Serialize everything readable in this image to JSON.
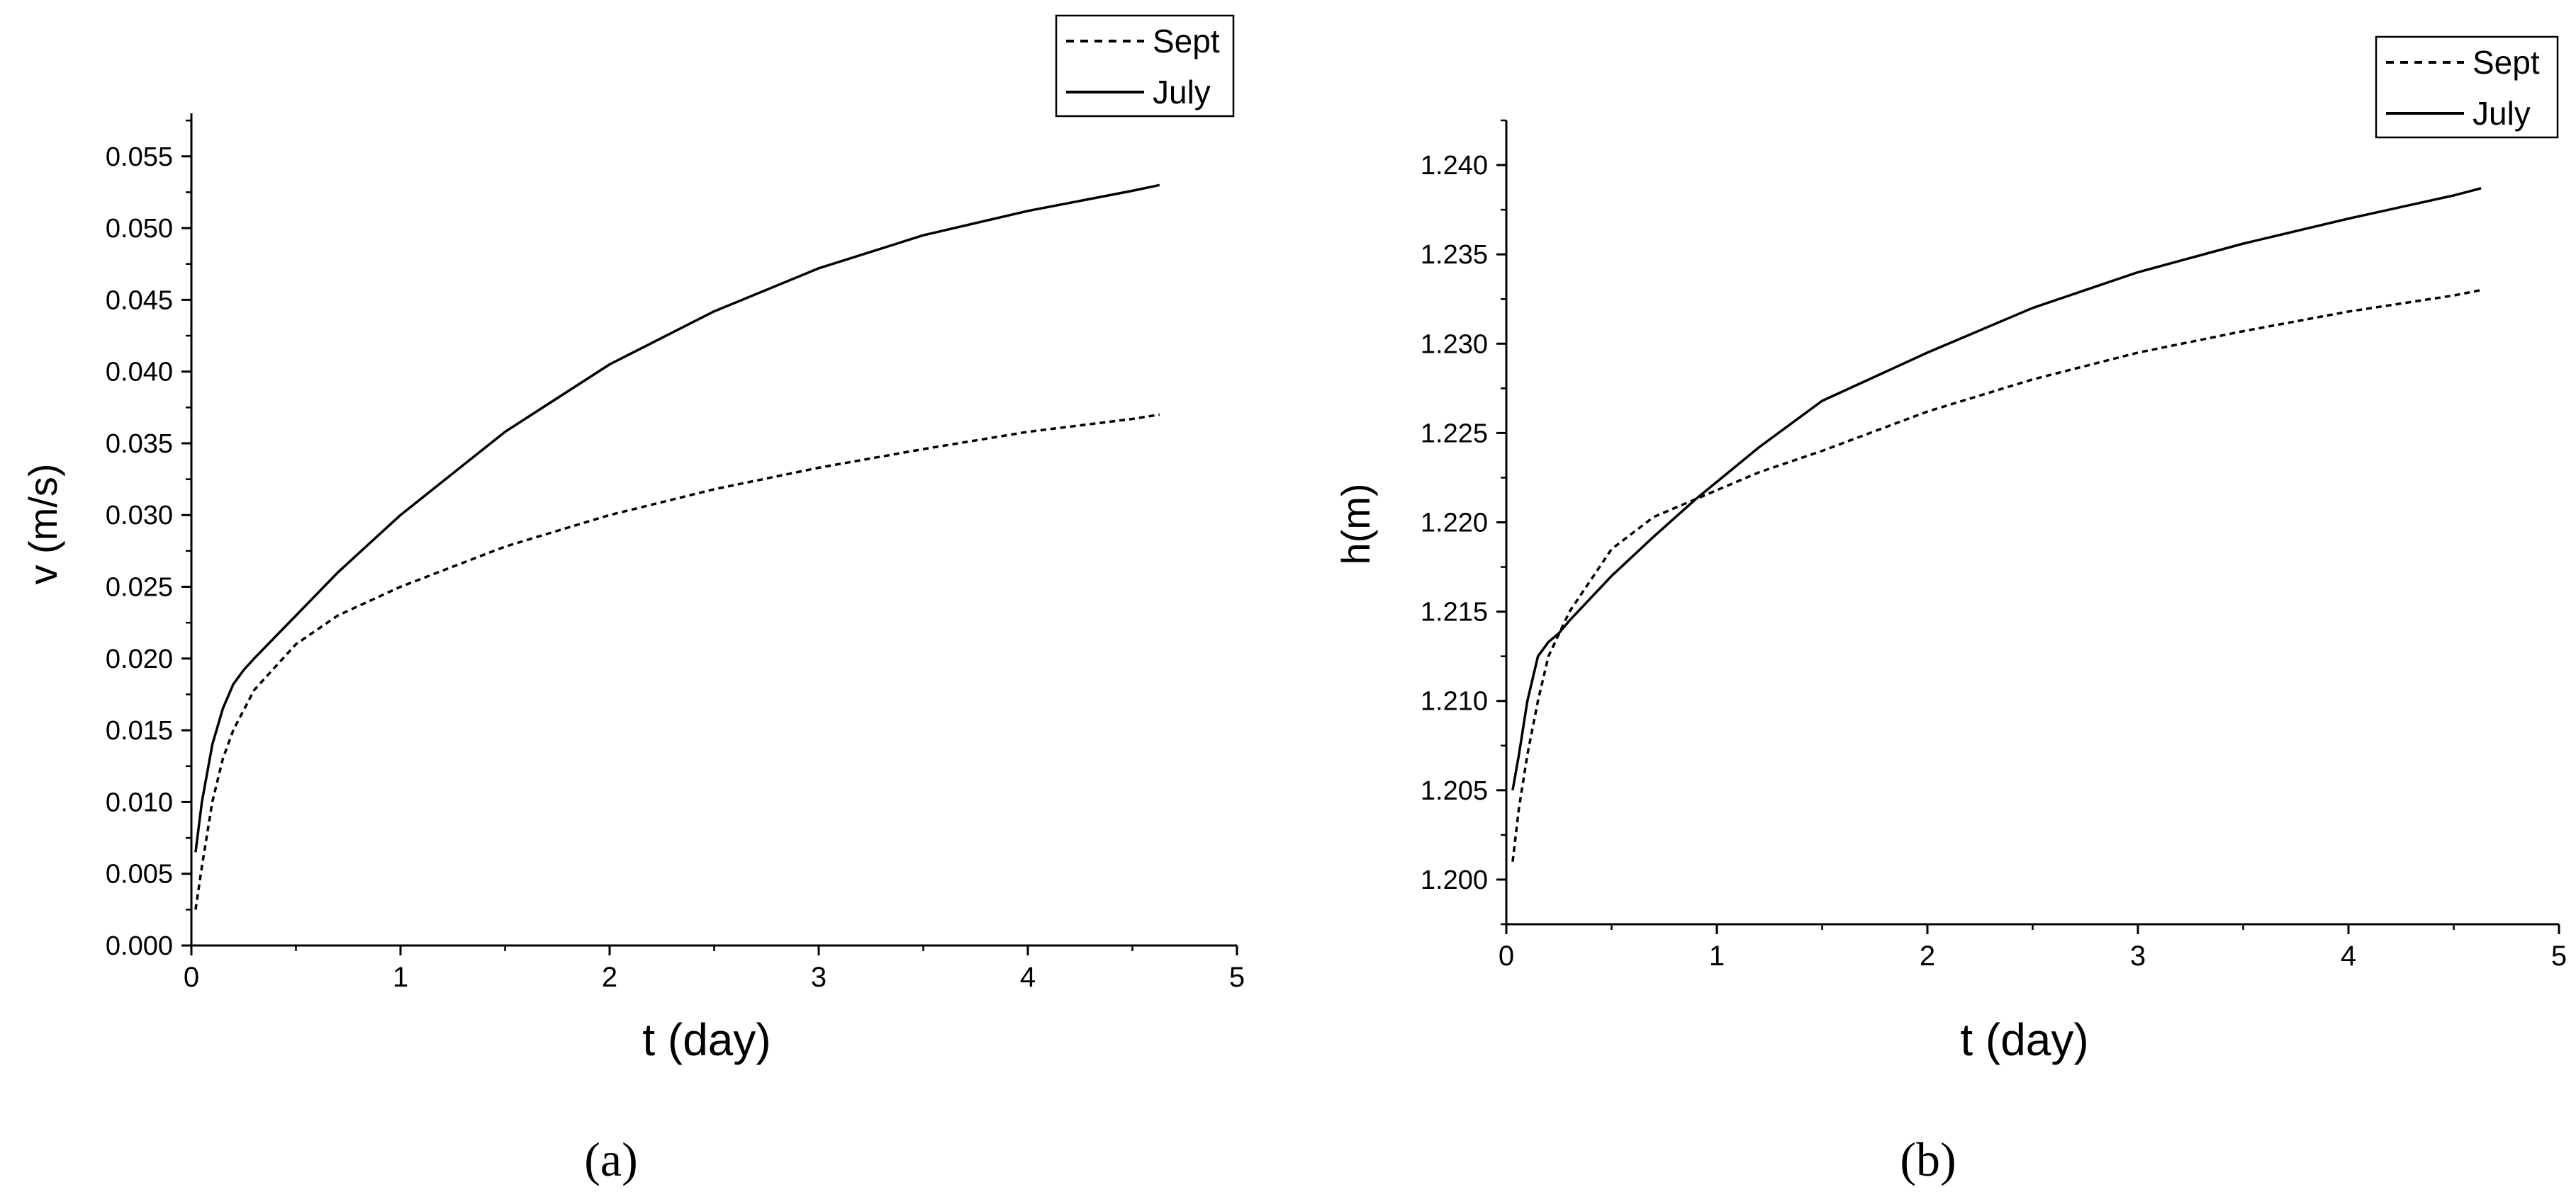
{
  "chart_data": [
    {
      "type": "line",
      "panel_label": "(a)",
      "xlabel": "t (day)",
      "ylabel": "v (m/s)",
      "xlim": [
        0,
        5
      ],
      "ylim": [
        0,
        0.058
      ],
      "x_ticks": [
        "0",
        "1",
        "2",
        "3",
        "4",
        "5"
      ],
      "y_ticks": [
        "0.000",
        "0.005",
        "0.010",
        "0.015",
        "0.020",
        "0.025",
        "0.030",
        "0.035",
        "0.040",
        "0.045",
        "0.050",
        "0.055"
      ],
      "grid": false,
      "legend_position": "top-right",
      "series": [
        {
          "name": "Sept",
          "style": "dashed",
          "x": [
            0.02,
            0.05,
            0.1,
            0.15,
            0.2,
            0.3,
            0.5,
            0.7,
            1.0,
            1.5,
            2.0,
            2.5,
            3.0,
            3.5,
            4.0,
            4.5,
            4.63
          ],
          "y": [
            0.0025,
            0.0055,
            0.01,
            0.013,
            0.015,
            0.0178,
            0.021,
            0.023,
            0.025,
            0.0278,
            0.03,
            0.0318,
            0.0333,
            0.0346,
            0.0358,
            0.0367,
            0.037
          ]
        },
        {
          "name": "July",
          "style": "solid",
          "x": [
            0.02,
            0.05,
            0.1,
            0.15,
            0.2,
            0.25,
            0.3,
            0.5,
            0.7,
            1.0,
            1.5,
            2.0,
            2.5,
            3.0,
            3.5,
            4.0,
            4.5,
            4.63
          ],
          "y": [
            0.0065,
            0.01,
            0.014,
            0.0165,
            0.0182,
            0.0192,
            0.02,
            0.023,
            0.026,
            0.03,
            0.0358,
            0.0405,
            0.0442,
            0.0472,
            0.0495,
            0.0512,
            0.0526,
            0.053
          ]
        }
      ]
    },
    {
      "type": "line",
      "panel_label": "(b)",
      "xlabel": "t (day)",
      "ylabel": "h(m)",
      "xlim": [
        0,
        5
      ],
      "ylim": [
        1.1975,
        1.2425
      ],
      "x_ticks": [
        "0",
        "1",
        "2",
        "3",
        "4",
        "5"
      ],
      "y_ticks": [
        "1.200",
        "1.205",
        "1.210",
        "1.215",
        "1.220",
        "1.225",
        "1.230",
        "1.235",
        "1.240"
      ],
      "grid": false,
      "legend_position": "top-right",
      "series": [
        {
          "name": "Sept",
          "style": "dashed",
          "x": [
            0.03,
            0.06,
            0.1,
            0.15,
            0.2,
            0.3,
            0.5,
            0.7,
            0.9,
            1.2,
            1.5,
            2.0,
            2.5,
            3.0,
            3.5,
            4.0,
            4.5,
            4.63
          ],
          "y": [
            1.201,
            1.204,
            1.207,
            1.21,
            1.2125,
            1.215,
            1.2185,
            1.2203,
            1.2213,
            1.2228,
            1.224,
            1.2262,
            1.228,
            1.2295,
            1.2307,
            1.2318,
            1.2327,
            1.233
          ]
        },
        {
          "name": "July",
          "style": "solid",
          "x": [
            0.03,
            0.06,
            0.1,
            0.15,
            0.2,
            0.25,
            0.3,
            0.5,
            0.7,
            0.9,
            1.2,
            1.5,
            2.0,
            2.5,
            3.0,
            3.5,
            4.0,
            4.5,
            4.63
          ],
          "y": [
            1.205,
            1.207,
            1.21,
            1.2125,
            1.2133,
            1.2138,
            1.2145,
            1.217,
            1.2192,
            1.2213,
            1.2242,
            1.2268,
            1.2295,
            1.232,
            1.234,
            1.2356,
            1.237,
            1.2383,
            1.2387
          ]
        }
      ]
    }
  ]
}
